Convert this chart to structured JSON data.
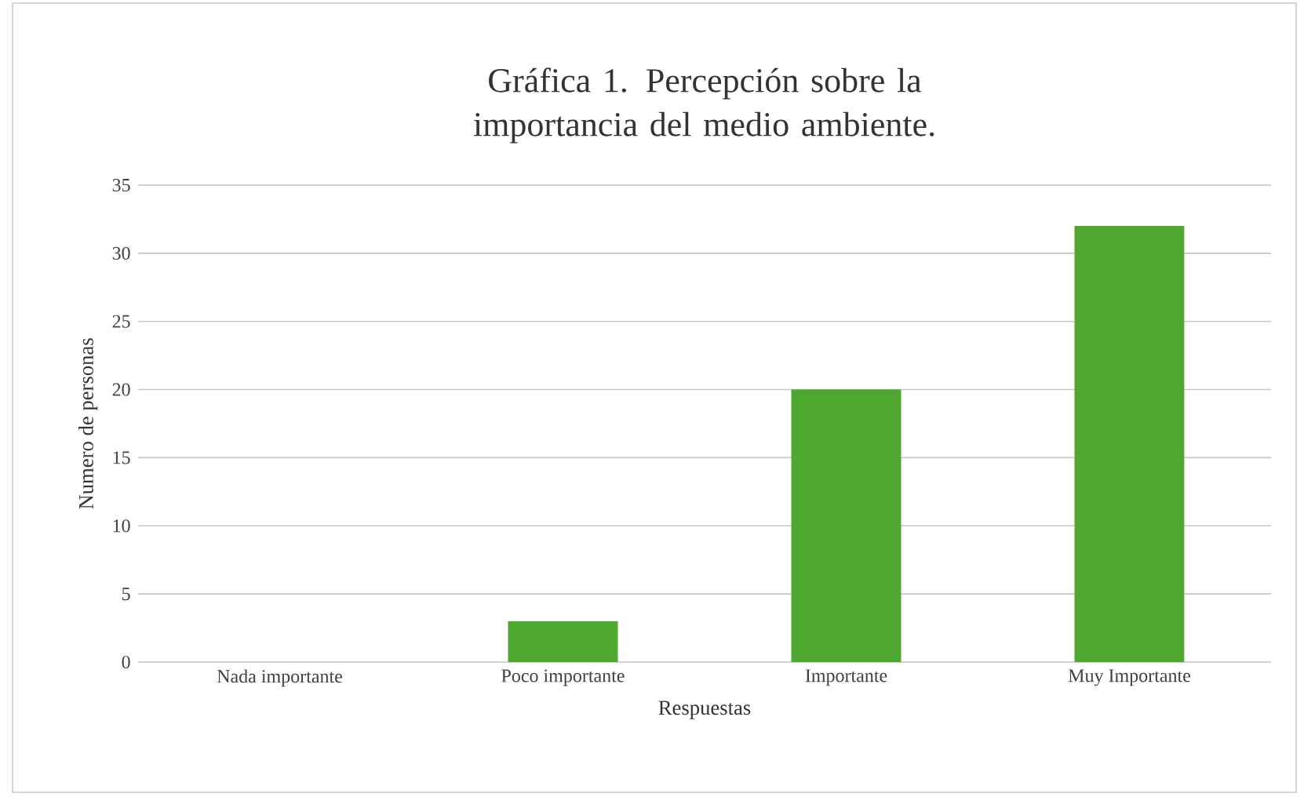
{
  "chart_data": {
    "type": "bar",
    "title": "Gráfica 1. Percepción sobre la importancia del medio ambiente.",
    "xlabel": "Respuestas",
    "ylabel": "Numero de personas",
    "categories": [
      "Nada importante",
      "Poco importante",
      "Importante",
      "Muy Importante"
    ],
    "values": [
      0,
      3,
      20,
      32
    ],
    "color": "#4ea72e",
    "ylim": [
      0,
      35
    ],
    "yticks": [
      0,
      5,
      10,
      15,
      20,
      25,
      30,
      35
    ],
    "grid": "y"
  }
}
